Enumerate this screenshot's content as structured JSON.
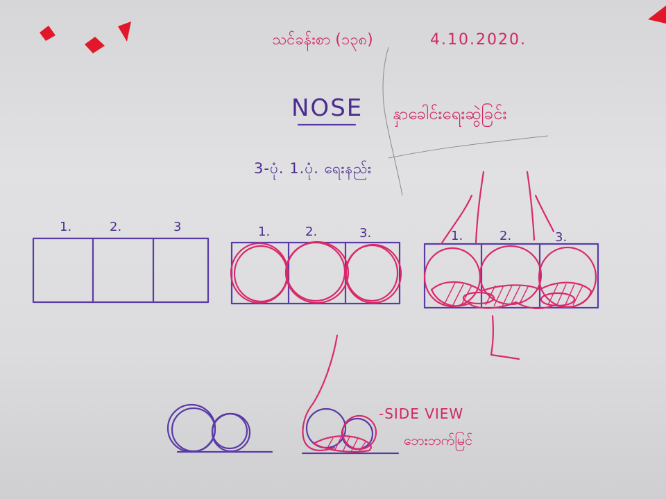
{
  "header": {
    "lesson_label": "သင်ခန်းစာ (၁၃၈)",
    "date": "4.10.2020."
  },
  "title": {
    "main": "NOSE",
    "burmese": "နှာခေါင်းရေးဆွဲခြင်း"
  },
  "subtitle": "3-ပုံ. 1.ပုံ. ရေးနည်း",
  "box_labels": {
    "left": [
      "1.",
      "2.",
      "3"
    ],
    "middle": [
      "1.",
      "2.",
      "3."
    ],
    "right": [
      "1.",
      "2.",
      "3."
    ]
  },
  "side_view": {
    "label": "-SIDE VIEW",
    "burmese": "ဘေးဘက်မြင်"
  },
  "colors": {
    "pink_marker": "#d82a6b",
    "purple_marker": "#5a3aa6",
    "red_tape": "#e0182a",
    "board": "#dcdcde"
  }
}
